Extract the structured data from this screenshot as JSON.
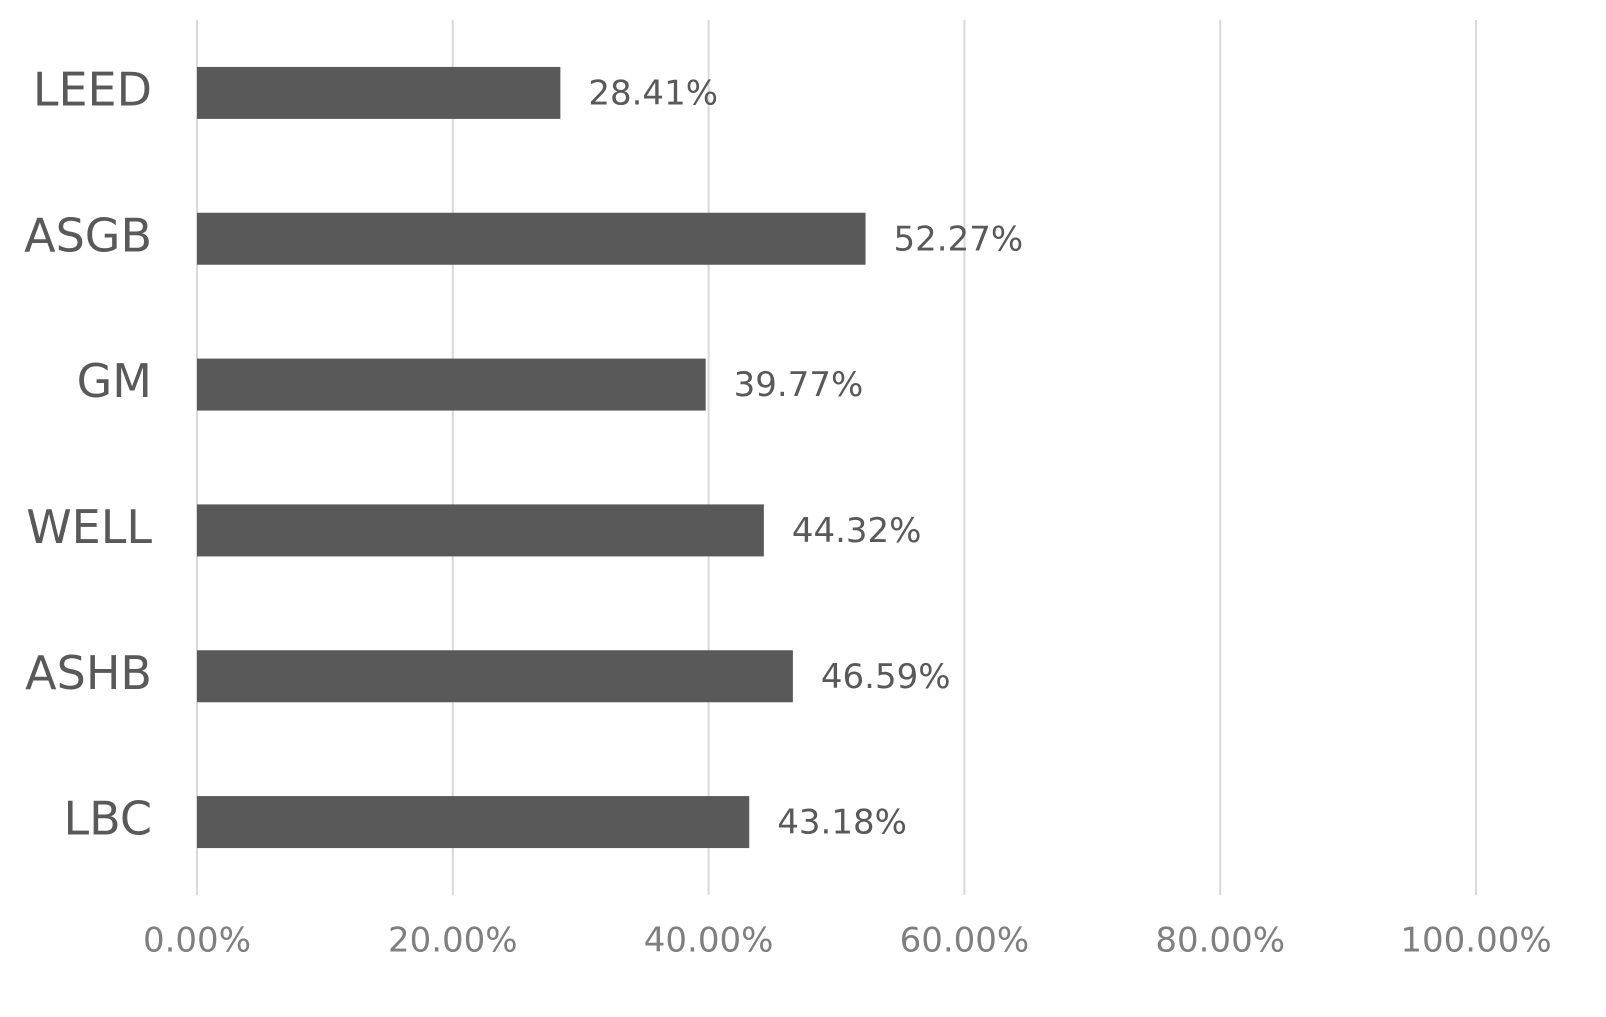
{
  "chart_data": {
    "type": "bar",
    "orientation": "horizontal",
    "categories": [
      "LEED",
      "ASGB",
      "GM",
      "WELL",
      "ASHB",
      "LBC"
    ],
    "values": [
      28.41,
      52.27,
      39.77,
      44.32,
      46.59,
      43.18
    ],
    "value_labels": [
      "28.41%",
      "52.27%",
      "39.77%",
      "44.32%",
      "46.59%",
      "43.18%"
    ],
    "color": "#595959",
    "xlim": [
      0,
      100
    ],
    "xticks": [
      {
        "value": 0,
        "label": "0.00%"
      },
      {
        "value": 20,
        "label": "20.00%"
      },
      {
        "value": 40,
        "label": "40.00%"
      },
      {
        "value": 60,
        "label": "60.00%"
      },
      {
        "value": 80,
        "label": "80.00%"
      },
      {
        "value": 100,
        "label": "100.00%"
      }
    ],
    "grid": true
  }
}
